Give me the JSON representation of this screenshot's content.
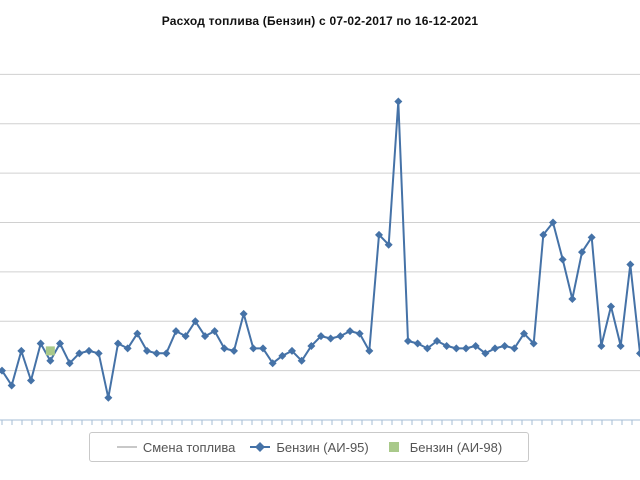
{
  "chart_data": {
    "type": "line",
    "title": "Расход топлива (Бензин) с 07-02-2017 по 16-12-2021",
    "xlabel": "",
    "ylabel": "",
    "grid": true,
    "legend_position": "bottom",
    "series": [
      {
        "name": "Бензин (АИ-95)",
        "color": "#4572a7",
        "marker": "diamond",
        "values": [
          8.0,
          7.4,
          8.8,
          7.6,
          9.1,
          8.4,
          9.1,
          8.3,
          8.7,
          8.8,
          8.7,
          6.9,
          9.1,
          8.9,
          9.5,
          8.8,
          8.7,
          8.7,
          9.6,
          9.4,
          10.0,
          9.4,
          9.6,
          8.9,
          8.8,
          10.3,
          8.9,
          8.9,
          8.3,
          8.6,
          8.8,
          8.4,
          9.0,
          9.4,
          9.3,
          9.4,
          9.6,
          9.5,
          8.8,
          13.5,
          13.1,
          18.9,
          9.2,
          9.1,
          8.9,
          9.2,
          9.0,
          8.9,
          8.9,
          9.0,
          8.7,
          8.9,
          9.0,
          8.9,
          9.5,
          9.1,
          13.5,
          14.0,
          12.5,
          10.9,
          12.8,
          13.4,
          9.0,
          10.6,
          9.0,
          12.3,
          8.7
        ]
      },
      {
        "name": "Бензин (АИ-98)",
        "color": "#89a54e",
        "marker": "square",
        "values": [
          null,
          null,
          null,
          null,
          null,
          8.8,
          null,
          null,
          null,
          null,
          null,
          null,
          null,
          null,
          null,
          null,
          null,
          null,
          null,
          null,
          null,
          null,
          null,
          null,
          null,
          null,
          null,
          null,
          null,
          null,
          null,
          null,
          null,
          null,
          null,
          null,
          null,
          null,
          null,
          null,
          null,
          null,
          null,
          null,
          null,
          null,
          null,
          null,
          null,
          null,
          null,
          null,
          null,
          null,
          null,
          null,
          null,
          null,
          null,
          null,
          null,
          null,
          null,
          null,
          null,
          null,
          null
        ]
      }
    ],
    "legend": [
      {
        "label": "Смена топлива",
        "color": "#c8c8c8",
        "symbol": "line"
      },
      {
        "label": "Бензин (АИ-95)",
        "color": "#4572a7",
        "symbol": "diamond"
      },
      {
        "label": "Бензин (АИ-98)",
        "color": "#a9c98a",
        "symbol": "square"
      }
    ],
    "ylim": [
      6,
      22
    ],
    "ytick_values": [
      6,
      8,
      10,
      12,
      14,
      16,
      18,
      20
    ]
  }
}
